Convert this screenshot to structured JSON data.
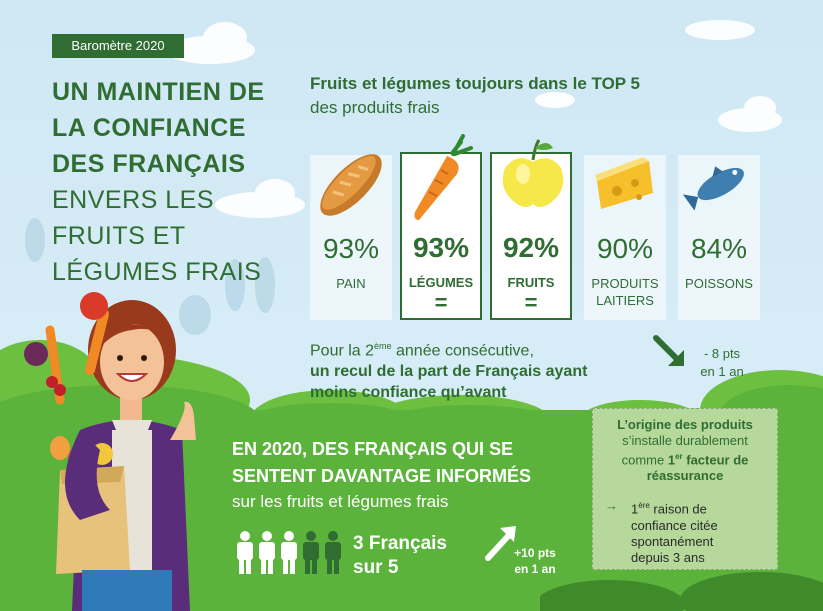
{
  "badge": "Baromètre 2020",
  "title": {
    "bold1": "UN MAINTIEN DE",
    "bold2": "LA CONFIANCE",
    "bold3": "DES FRANÇAIS",
    "light1": "ENVERS LES",
    "light2": "FRUITS ET",
    "light3": "LÉGUMES FRAIS"
  },
  "top5": {
    "heading": "Fruits et légumes toujours dans le TOP 5",
    "subheading": "des produits frais",
    "items": [
      {
        "pct": "93%",
        "label": "PAIN",
        "icon": "bread-icon"
      },
      {
        "pct": "93%",
        "label": "LÉGUMES",
        "eq": "=",
        "icon": "carrot-icon"
      },
      {
        "pct": "92%",
        "label": "FRUITS",
        "eq": "=",
        "icon": "apple-icon"
      },
      {
        "pct": "90%",
        "label1": "PRODUITS",
        "label2": "LAITIERS",
        "icon": "cheese-icon"
      },
      {
        "pct": "84%",
        "label": "POISSONS",
        "icon": "fish-icon"
      }
    ]
  },
  "recul": {
    "line1_pre": "Pour la 2",
    "line1_sup": "ème",
    "line1_post": " année consécutive,",
    "line2": "un recul de la part de Français ayant",
    "line3": "moins confiance qu’avant",
    "pts1": "- 8 pts",
    "pts2": "en 1 an"
  },
  "info": {
    "title1": "EN 2020, DES FRANÇAIS QUI SE",
    "title2": "SENTENT DAVANTAGE INFORMÉS",
    "sub": "sur les fruits et légumes frais",
    "count1": "3 Français",
    "count2": "sur 5",
    "pts1": "+10 pts",
    "pts2": "en 1 an"
  },
  "origin": {
    "l1": "L’origine des produits",
    "l2": "s’installe durablement",
    "l3_pre": "comme ",
    "l3_b": "1",
    "l3_sup": "er",
    "l3_post": " facteur de",
    "l4": "réassurance",
    "r1_num": "1",
    "r1_sup": "ère",
    "r1_post": " raison de",
    "r2": "confiance citée",
    "r3": "spontanément",
    "r4": "depuis 3 ans"
  },
  "colors": {
    "dark_green": "#2f6d33",
    "grass_green": "#5cb33b",
    "sky": "#cfe8f4"
  }
}
